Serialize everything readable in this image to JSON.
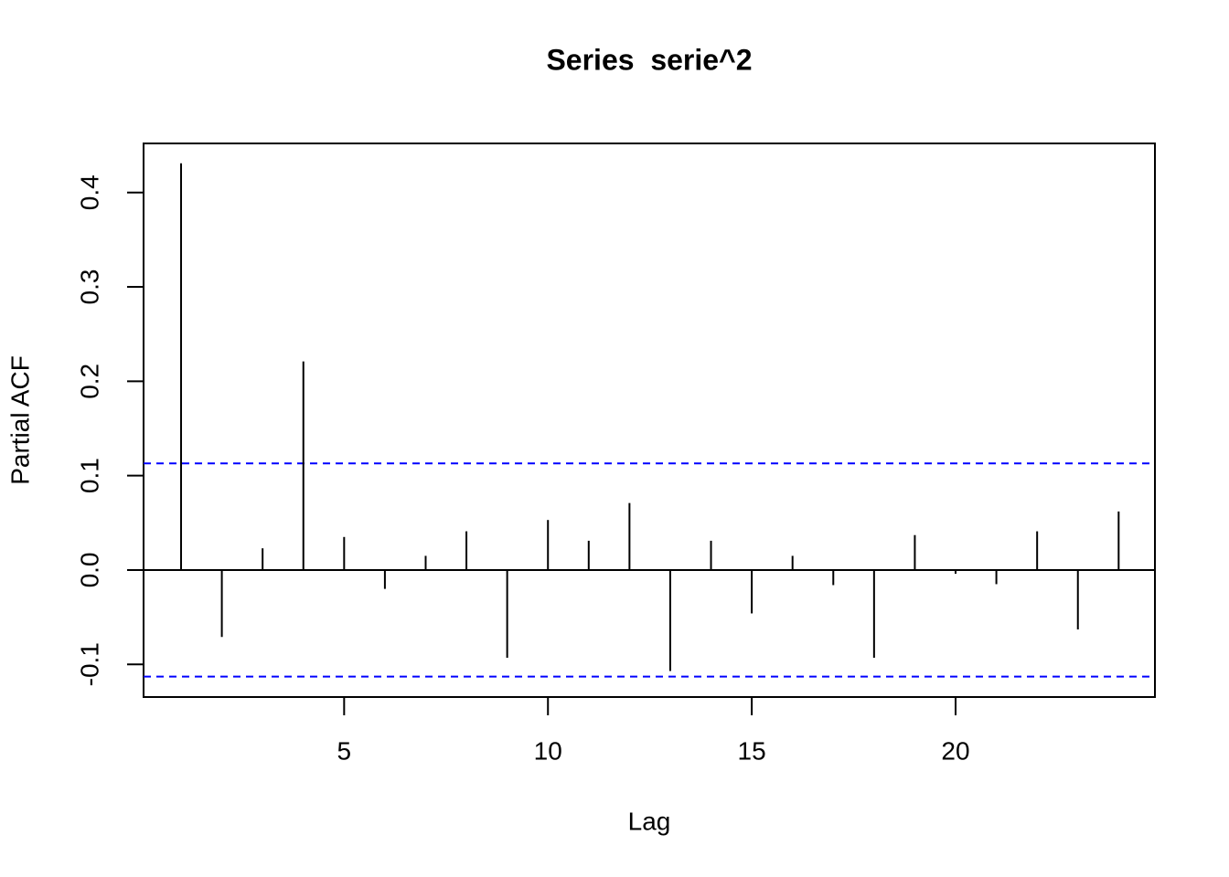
{
  "chart_data": {
    "type": "pacf",
    "title": "Series  serie^2",
    "x_label": "Lag",
    "y_label": "Partial ACF",
    "x": [
      1,
      2,
      3,
      4,
      5,
      6,
      7,
      8,
      9,
      10,
      11,
      12,
      13,
      14,
      15,
      16,
      17,
      18,
      19,
      20,
      21,
      22,
      23,
      24
    ],
    "values": [
      0.431,
      -0.071,
      0.023,
      0.221,
      0.035,
      -0.02,
      0.015,
      0.041,
      -0.093,
      0.053,
      0.031,
      0.071,
      -0.107,
      0.031,
      -0.046,
      0.015,
      -0.016,
      -0.093,
      0.037,
      -0.004,
      -0.015,
      0.041,
      -0.063,
      0.062
    ],
    "color": "#000000",
    "conf_limits": [
      0.113,
      -0.113
    ],
    "conf_color": "#0000ff",
    "xlim": [
      0.08,
      24.89
    ],
    "xticks": [
      5,
      10,
      15,
      20
    ],
    "ylim": [
      -0.1346,
      0.452
    ],
    "yticks": [
      -0.1,
      {
        "value": 0,
        "label": "0.0"
      },
      0.1,
      0.2,
      0.3,
      0.4
    ]
  }
}
